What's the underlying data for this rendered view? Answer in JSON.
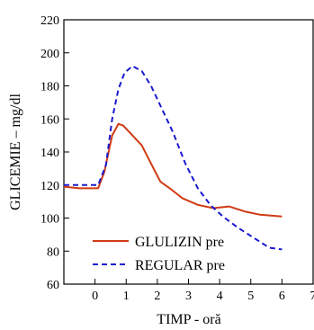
{
  "chart_data": {
    "type": "line",
    "xlabel": "TIMP - oră",
    "ylabel": "GLICEMIE – mg/dl",
    "xlim": [
      -1,
      7
    ],
    "ylim": [
      60,
      220
    ],
    "xticks": [
      0,
      1,
      2,
      3,
      4,
      5,
      6,
      7
    ],
    "yticks": [
      60,
      80,
      100,
      120,
      140,
      160,
      180,
      200,
      220
    ],
    "grid": false,
    "legend_position": "bottom-center",
    "series": [
      {
        "name": "GLULIZIN pre",
        "color": "#d03a14",
        "style": "solid",
        "points": [
          [
            -1,
            119
          ],
          [
            -0.5,
            118
          ],
          [
            0.1,
            118
          ],
          [
            0.3,
            128
          ],
          [
            0.55,
            150
          ],
          [
            0.75,
            157
          ],
          [
            0.9,
            156
          ],
          [
            1.2,
            150
          ],
          [
            1.5,
            144
          ],
          [
            1.8,
            133
          ],
          [
            2.1,
            122
          ],
          [
            2.4,
            118
          ],
          [
            2.8,
            112
          ],
          [
            3.3,
            108
          ],
          [
            3.8,
            106
          ],
          [
            4.3,
            107
          ],
          [
            4.8,
            104
          ],
          [
            5.3,
            102
          ],
          [
            6,
            101
          ]
        ]
      },
      {
        "name": "REGULAR pre",
        "color": "#1a1ad0",
        "style": "dashed",
        "points": [
          [
            -1,
            120
          ],
          [
            -0.5,
            120
          ],
          [
            0.1,
            120
          ],
          [
            0.35,
            132
          ],
          [
            0.55,
            160
          ],
          [
            0.75,
            178
          ],
          [
            0.95,
            188
          ],
          [
            1.2,
            192
          ],
          [
            1.5,
            189
          ],
          [
            1.8,
            180
          ],
          [
            2.1,
            168
          ],
          [
            2.5,
            152
          ],
          [
            2.9,
            133
          ],
          [
            3.3,
            118
          ],
          [
            3.7,
            108
          ],
          [
            4.1,
            101
          ],
          [
            4.6,
            94
          ],
          [
            5.1,
            88
          ],
          [
            5.6,
            82
          ],
          [
            6,
            81
          ]
        ]
      }
    ]
  }
}
